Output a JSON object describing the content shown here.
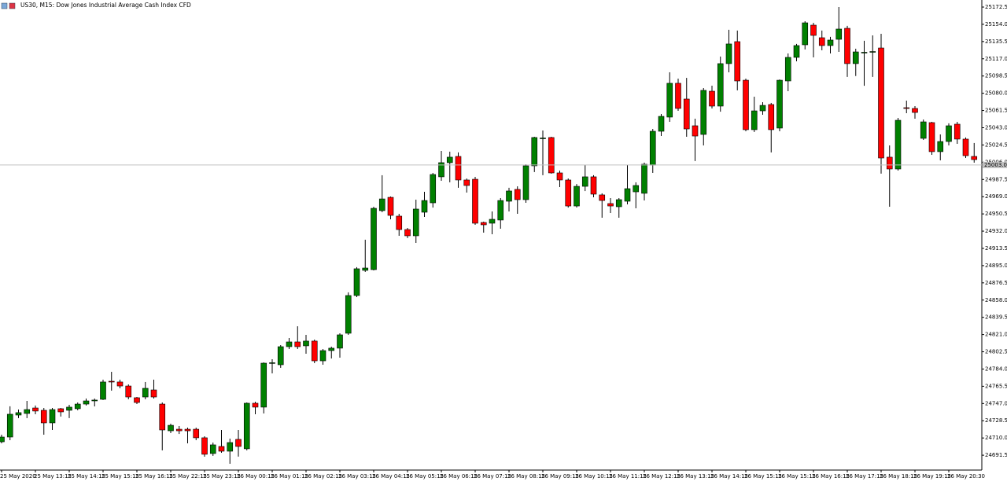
{
  "chart_data": {
    "type": "candlestick",
    "title": "US30, M15:  Dow Jones Industrial Average Cash Index CFD",
    "up_color": "#008000",
    "down_color": "#ff0000",
    "ylim": [
      24676.4,
      25178.4
    ],
    "yticks": [
      24691.5,
      {
        "value": 24710,
        "label": "24710.0"
      },
      24728.5,
      {
        "value": 24747,
        "label": "24747.0"
      },
      24765.5,
      {
        "value": 24784,
        "label": "24784.0"
      },
      24802.5,
      {
        "value": 24821,
        "label": "24821.0"
      },
      24839.5,
      {
        "value": 24858,
        "label": "24858.0"
      },
      24876.5,
      {
        "value": 24895,
        "label": "24895.0"
      },
      24913.5,
      {
        "value": 24932,
        "label": "24932.0"
      },
      24950.5,
      {
        "value": 24969,
        "label": "24969.0"
      },
      24987.5,
      {
        "value": 25006,
        "label": "25006.0"
      },
      25024.5,
      {
        "value": 25043,
        "label": "25043.0"
      },
      25061.5,
      {
        "value": 25080,
        "label": "25080.0"
      },
      25098.5,
      {
        "value": 25117,
        "label": "25117.0"
      },
      25135.5,
      {
        "value": 25154,
        "label": "25154.0"
      },
      25172.5
    ],
    "price_line": {
      "value": 25003,
      "label": "25003.0"
    },
    "categories": [
      "25 May 2020",
      null,
      null,
      null,
      "25 May 13:15",
      null,
      null,
      null,
      "25 May 14:15",
      null,
      null,
      null,
      "25 May 15:15",
      null,
      null,
      null,
      "25 May 16:15",
      null,
      null,
      null,
      "25 May 22:15",
      null,
      null,
      null,
      "25 May 23:15",
      null,
      null,
      null,
      "26 May 00:15",
      null,
      null,
      null,
      "26 May 01:15",
      null,
      null,
      null,
      "26 May 02:15",
      null,
      null,
      null,
      "26 May 03:15",
      null,
      null,
      null,
      "26 May 04:15",
      null,
      null,
      null,
      "26 May 05:15",
      null,
      null,
      null,
      "26 May 06:15",
      null,
      null,
      null,
      "26 May 07:15",
      null,
      null,
      null,
      "26 May 08:15",
      null,
      null,
      null,
      "26 May 09:15",
      null,
      null,
      null,
      "26 May 10:15",
      null,
      null,
      null,
      "26 May 11:15",
      null,
      null,
      null,
      "26 May 12:15",
      null,
      null,
      null,
      "26 May 13:15",
      null,
      null,
      null,
      "26 May 14:15",
      null,
      null,
      null,
      "26 May 15:15",
      null,
      null,
      null,
      "26 May 15:15",
      null,
      null,
      null,
      "26 May 16:15",
      null,
      null,
      null,
      "26 May 17:15",
      null,
      null,
      null,
      "26 May 18:15",
      null,
      null,
      null,
      "26 May 19:15",
      null,
      null,
      null,
      "26 May 20:30",
      null,
      null,
      null
    ],
    "open": [
      24705.9,
      24711.0,
      24734.6,
      24736.3,
      24742.2,
      24739.7,
      24726.2,
      24741.4,
      24739.7,
      24741.4,
      24746.4,
      24749.8,
      24751.5,
      24770.9,
      24770.1,
      24765.8,
      24753.2,
      24754.0,
      24761.6,
      24746.4,
      24717.7,
      24719.4,
      24719.4,
      24719.4,
      24710.2,
      24693.3,
      24700.9,
      24695.8,
      24708.5,
      24698.4,
      24747.3,
      24743.1,
      24790.3,
      24788.6,
      24808.0,
      24813.1,
      24808.9,
      24814.0,
      24792.8,
      24803.8,
      24806.4,
      24822.4,
      24862.9,
      24889.9,
      24890.7,
      24954.0,
      24968.3,
      24948.1,
      24933.7,
      24927.0,
      24952.3,
      24962.4,
      24990.3,
      25005.5,
      25012.2,
      24986.9,
      24987.7,
      24941.3,
      24940.5,
      24943.9,
      24964.1,
      24976.8,
      24965.8,
      25002.1,
      25031.6,
      25032.5,
      24994.5,
      24986.9,
      24959.0,
      24980.1,
      24990.3,
      24970.9,
      24961.6,
      24958.2,
      24964.1,
      24974.2,
      24972.6,
      25002.9,
      25039.2,
      25054.4,
      25090.7,
      25073.8,
      25045.1,
      25035.8,
      25082.2,
      25066.2,
      25111.8,
      25135.4,
      25094.0,
      25040.9,
      25061.1,
      25067.9,
      25042.6,
      25093.2,
      25118.5,
      25132.0,
      25153.1,
      25139.6,
      25131.2,
      25137.9,
      25149.7,
      25111.8,
      25123.6,
      25124.4,
      25128.6,
      25011.4,
      24998.7,
      25064.5,
      25063.7,
      25031.6,
      25048.5,
      25017.3,
      25028.2,
      25046.8,
      25030.8,
      25012.2
    ],
    "high": [
      24713.5,
      24744.0,
      24740.5,
      24749.8,
      24744.8,
      24742.2,
      24742.2,
      24742.2,
      24745.6,
      24748.1,
      24752.3,
      24752.3,
      24772.6,
      24781.0,
      24772.6,
      24767.5,
      24754.0,
      24770.1,
      24772.6,
      24748.1,
      24725.3,
      24722.8,
      24721.1,
      24721.1,
      24711.8,
      24705.1,
      24718.6,
      24709.3,
      24718.6,
      24748.1,
      24748.9,
      24791.1,
      24794.5,
      24809.7,
      24817.3,
      24829.9,
      24820.7,
      24815.6,
      24805.5,
      24808.0,
      24822.4,
      24866.3,
      24893.3,
      24922.8,
      24958.2,
      24992.0,
      24969.2,
      24950.6,
      24935.4,
      24965.8,
      24974.2,
      24994.5,
      25018.1,
      25017.3,
      25016.5,
      24988.5,
      24990.3,
      24942.2,
      24953.1,
      24967.5,
      24978.5,
      24980.1,
      25003.8,
      25033.3,
      25040.0,
      25033.3,
      24997.0,
      24988.5,
      24982.6,
      25003.0,
      24992.0,
      24972.6,
      24967.5,
      24967.5,
      25002.9,
      24984.4,
      25005.5,
      25041.7,
      25057.7,
      25102.5,
      25095.7,
      25096.5,
      25052.7,
      25085.6,
      25088.1,
      25119.4,
      25148.1,
      25147.3,
      25095.7,
      25076.3,
      25070.4,
      25069.6,
      25094.8,
      25122.7,
      25132.9,
      25157.3,
      25155.6,
      25147.3,
      25140.5,
      25172.5,
      25152.3,
      25127.8,
      25136.3,
      25142.1,
      25143.8,
      25024.0,
      25053.5,
      25072.1,
      25066.2,
      25051.8,
      25049.3,
      25035.8,
      25047.7,
      25049.3,
      25032.5,
      25026.6
    ],
    "low": [
      24704.2,
      24707.6,
      24731.3,
      24731.3,
      24735.5,
      24713.5,
      24718.6,
      24733.0,
      24731.3,
      24739.7,
      24744.8,
      24743.9,
      24750.7,
      24760.8,
      24763.3,
      24751.5,
      24746.4,
      24751.5,
      24752.3,
      24696.7,
      24715.2,
      24714.3,
      24704.2,
      24707.6,
      24689.9,
      24690.8,
      24694.1,
      24682.3,
      24690.0,
      24696.7,
      24735.5,
      24736.3,
      24779.3,
      24785.3,
      24805.5,
      24805.5,
      24800.4,
      24790.3,
      24788.6,
      24795.3,
      24796.2,
      24820.7,
      24861.2,
      24888.2,
      24889.9,
      24952.3,
      24944.7,
      24927.0,
      24924.5,
      24919.4,
      24947.2,
      24957.3,
      24986.0,
      24984.4,
      24978.5,
      24973.4,
      24938.8,
      24930.4,
      24928.7,
      24934.6,
      24953.1,
      24950.6,
      24962.4,
      24995.4,
      24992.0,
      24993.7,
      24979.3,
      24957.3,
      24957.3,
      24975.0,
      24968.3,
      24946.4,
      24951.4,
      24946.4,
      24960.7,
      24956.5,
      24964.9,
      24994.5,
      25034.1,
      25049.3,
      25061.1,
      25033.3,
      25007.2,
      25024.0,
      25063.7,
      25060.2,
      25102.5,
      25083.1,
      25039.2,
      25038.4,
      25056.9,
      25016.5,
      25039.2,
      25082.2,
      25114.3,
      25127.0,
      25118.5,
      25126.1,
      25122.7,
      25124.4,
      25097.5,
      25098.5,
      25088.0,
      25097.5,
      24993.7,
      24958.2,
      24997.0,
      25058.6,
      25052.7,
      25029.9,
      25013.9,
      25008.0,
      25024.0,
      25025.7,
      25010.5,
      25005.5
    ],
    "close": [
      24711.0,
      24735.5,
      24737.2,
      24740.5,
      24738.9,
      24726.2,
      24740.5,
      24738.0,
      24743.1,
      24746.4,
      24749.8,
      24750.7,
      24770.1,
      24770.1,
      24765.8,
      24754.0,
      24748.1,
      24763.3,
      24754.0,
      24718.6,
      24723.6,
      24717.7,
      24717.7,
      24710.2,
      24692.5,
      24702.6,
      24695.8,
      24705.1,
      24700.9,
      24747.3,
      24743.1,
      24790.3,
      24790.8,
      24808.0,
      24813.1,
      24808.0,
      24814.0,
      24792.8,
      24803.8,
      24806.4,
      24820.7,
      24862.9,
      24891.6,
      24892.4,
      24956.5,
      24966.6,
      24948.9,
      24933.7,
      24927.0,
      24955.7,
      24964.9,
      24992.8,
      25005.5,
      25011.4,
      24986.9,
      24981.0,
      24940.5,
      24938.8,
      24944.7,
      24964.9,
      24975.1,
      24965.8,
      25002.1,
      25032.5,
      25032.0,
      24994.5,
      24986.9,
      24959.0,
      24980.1,
      24990.3,
      24971.7,
      24964.9,
      24959.0,
      24965.8,
      24977.6,
      24981.0,
      25003.8,
      25039.2,
      25055.2,
      25090.7,
      25063.7,
      25041.7,
      25034.1,
      25083.1,
      25066.2,
      25111.8,
      25132.9,
      25093.2,
      25040.9,
      25061.1,
      25067.0,
      25040.9,
      25094.0,
      25118.5,
      25131.2,
      25155.6,
      25142.1,
      25131.2,
      25137.1,
      25148.9,
      25111.8,
      25124.4,
      25124.0,
      25124.8,
      25010.5,
      24998.7,
      25051.0,
      25063.7,
      25059.4,
      25049.3,
      25017.3,
      25028.2,
      25045.1,
      25030.8,
      25013.0,
      25008.8
    ]
  }
}
